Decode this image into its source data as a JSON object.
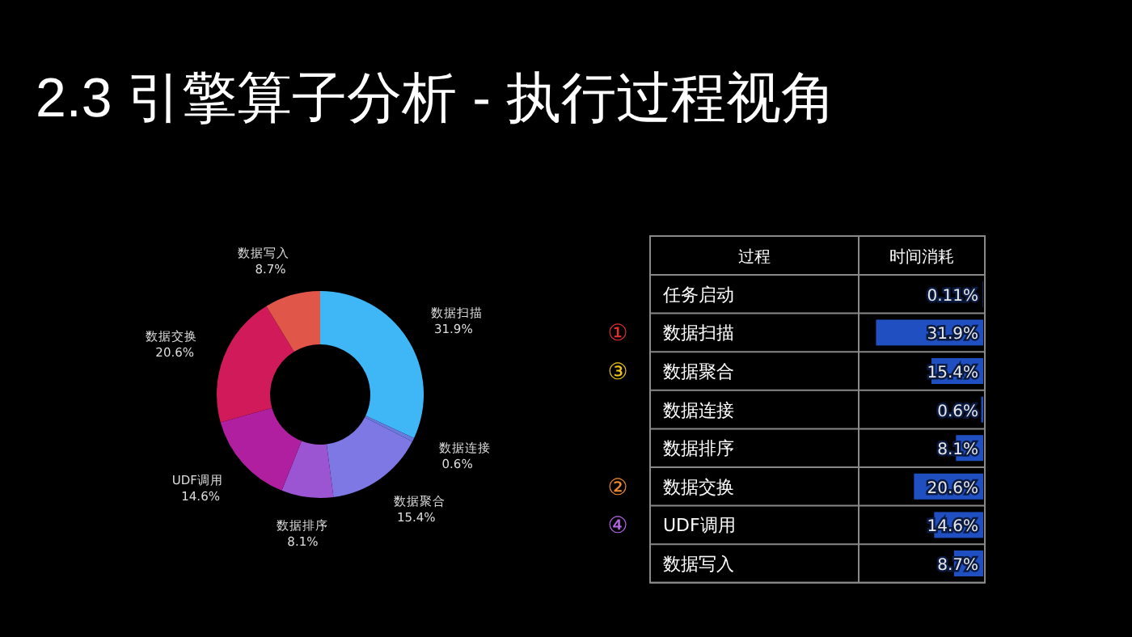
{
  "chart_data": [
    {
      "type": "donut",
      "title": "2.3 引擎算子分析 - 执行过程视角",
      "categories": [
        "数据扫描",
        "数据连接",
        "数据聚合",
        "数据排序",
        "UDF调用",
        "数据交换",
        "数据写入"
      ],
      "values": [
        31.9,
        0.6,
        15.4,
        8.1,
        14.6,
        20.6,
        8.7
      ],
      "value_labels": [
        "31.9%",
        "0.6%",
        "15.4%",
        "8.1%",
        "14.6%",
        "20.6%",
        "8.7%"
      ],
      "colors": [
        "#3fb6f6",
        "#6a7be0",
        "#7d78e4",
        "#9c55d2",
        "#b01fa0",
        "#d01a5a",
        "#e0574a"
      ]
    },
    {
      "type": "bar",
      "orientation": "horizontal",
      "ylabel": "过程",
      "xlabel": "时间消耗",
      "categories": [
        "任务启动",
        "数据扫描",
        "数据聚合",
        "数据连接",
        "数据排序",
        "数据交换",
        "UDF调用",
        "数据写入"
      ],
      "values": [
        0.11,
        31.9,
        15.4,
        0.6,
        8.1,
        20.6,
        14.6,
        8.7
      ],
      "value_labels": [
        "0.11%",
        "31.9%",
        "15.4%",
        "0.6%",
        "8.1%",
        "20.6%",
        "14.6%",
        "8.7%"
      ],
      "color": "#1f4fc0",
      "annotations": [
        "①",
        "③",
        "②",
        "④"
      ]
    }
  ]
}
